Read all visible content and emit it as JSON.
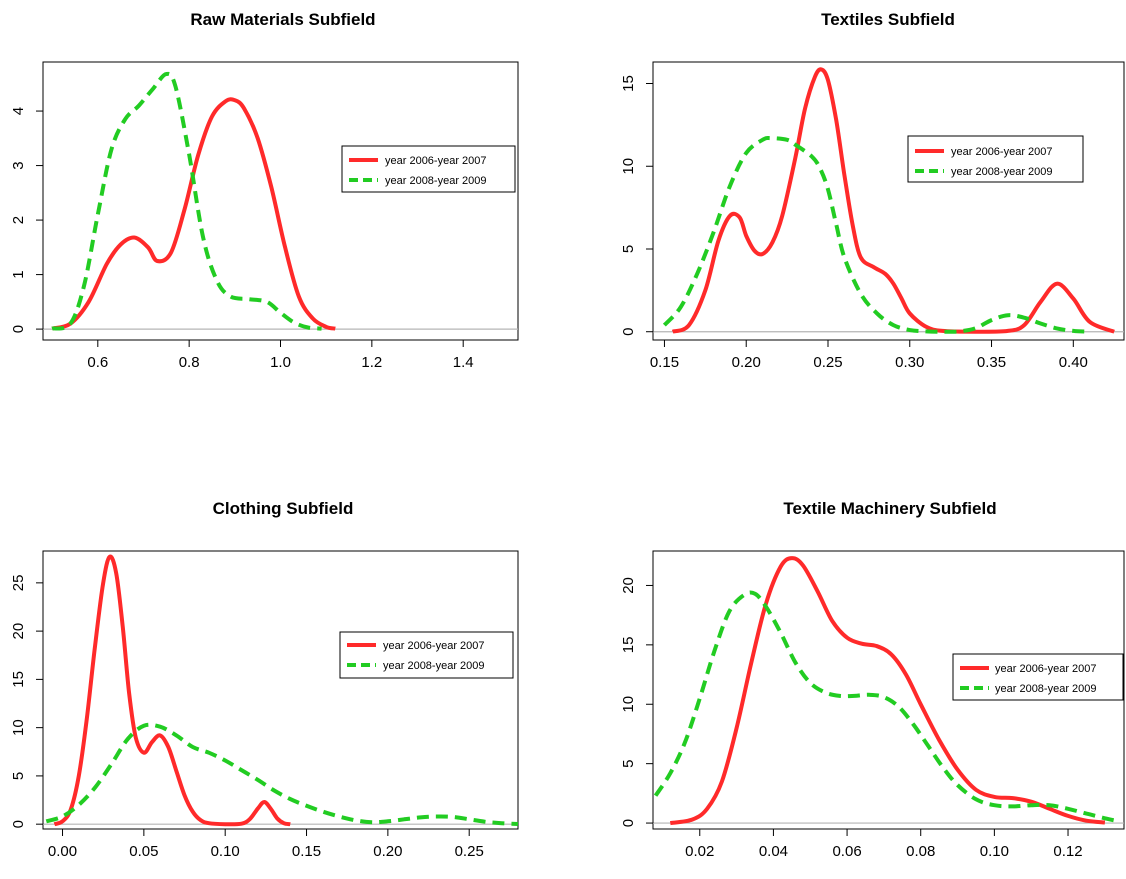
{
  "series_colors": {
    "s1": "#ff2a2a",
    "s2": "#22cc22"
  },
  "chart_data": [
    {
      "type": "line",
      "title": "Raw Materials Subfield",
      "xlabel": "",
      "ylabel": "",
      "xlim": [
        0.48,
        1.52
      ],
      "ylim": [
        -0.2,
        4.9
      ],
      "x_ticks": [
        0.6,
        0.8,
        1.0,
        1.2,
        1.4
      ],
      "x_tick_labels": [
        "0.6",
        "0.8",
        "1.0",
        "1.2",
        "1.4"
      ],
      "y_ticks": [
        0,
        1,
        2,
        3,
        4
      ],
      "y_tick_labels": [
        "0",
        "1",
        "2",
        "3",
        "4"
      ],
      "legend": {
        "position": "right",
        "entries": [
          "year 2006-year 2007",
          "year 2008-year 2009"
        ]
      },
      "series": [
        {
          "name": "year 2006-year 2007",
          "style": "solid",
          "x": [
            0.5,
            0.54,
            0.58,
            0.62,
            0.65,
            0.68,
            0.71,
            0.73,
            0.76,
            0.79,
            0.82,
            0.85,
            0.88,
            0.9,
            0.92,
            0.95,
            0.98,
            1.01,
            1.04,
            1.07,
            1.1,
            1.12
          ],
          "y": [
            0.01,
            0.1,
            0.5,
            1.2,
            1.55,
            1.68,
            1.5,
            1.25,
            1.4,
            2.2,
            3.2,
            3.9,
            4.18,
            4.2,
            4.05,
            3.5,
            2.6,
            1.5,
            0.6,
            0.2,
            0.04,
            0.01
          ]
        },
        {
          "name": "year 2008-year 2009",
          "style": "dashed",
          "x": [
            0.5,
            0.54,
            0.57,
            0.6,
            0.63,
            0.66,
            0.69,
            0.72,
            0.75,
            0.77,
            0.8,
            0.83,
            0.86,
            0.89,
            0.93,
            0.97,
            1.0,
            1.03,
            1.06,
            1.09
          ],
          "y": [
            0.01,
            0.1,
            0.8,
            2.1,
            3.3,
            3.85,
            4.1,
            4.4,
            4.68,
            4.45,
            3.2,
            1.7,
            0.9,
            0.6,
            0.55,
            0.5,
            0.3,
            0.12,
            0.03,
            0.01
          ]
        }
      ]
    },
    {
      "type": "line",
      "title": "Textiles Subfield",
      "xlabel": "",
      "ylabel": "",
      "xlim": [
        0.143,
        0.431
      ],
      "ylim": [
        -0.5,
        16.3
      ],
      "x_ticks": [
        0.15,
        0.2,
        0.25,
        0.3,
        0.35,
        0.4
      ],
      "x_tick_labels": [
        "0.15",
        "0.20",
        "0.25",
        "0.30",
        "0.35",
        "0.40"
      ],
      "y_ticks": [
        0,
        5,
        10,
        15
      ],
      "y_tick_labels": [
        "0",
        "5",
        "10",
        "15"
      ],
      "legend": {
        "position": "top-right",
        "entries": [
          "year 2006-year 2007",
          "year 2008-year 2009"
        ]
      },
      "series": [
        {
          "name": "year 2006-year 2007",
          "style": "solid",
          "x": [
            0.155,
            0.165,
            0.175,
            0.183,
            0.19,
            0.196,
            0.2,
            0.205,
            0.21,
            0.216,
            0.222,
            0.23,
            0.236,
            0.242,
            0.246,
            0.25,
            0.255,
            0.26,
            0.265,
            0.27,
            0.278,
            0.285,
            0.29,
            0.295,
            0.3,
            0.31,
            0.32,
            0.34,
            0.36,
            0.37,
            0.38,
            0.39,
            0.4,
            0.41,
            0.425
          ],
          "y": [
            0.0,
            0.4,
            2.5,
            5.5,
            7.0,
            6.9,
            5.8,
            4.9,
            4.7,
            5.4,
            7.0,
            10.5,
            13.5,
            15.4,
            15.85,
            15.2,
            12.8,
            9.5,
            6.5,
            4.5,
            3.9,
            3.5,
            2.9,
            2.0,
            1.1,
            0.3,
            0.05,
            0.0,
            0.05,
            0.4,
            1.8,
            2.9,
            2.0,
            0.6,
            0.0
          ]
        },
        {
          "name": "year 2008-year 2009",
          "style": "dashed",
          "x": [
            0.15,
            0.16,
            0.17,
            0.18,
            0.19,
            0.2,
            0.21,
            0.215,
            0.225,
            0.23,
            0.24,
            0.245,
            0.25,
            0.255,
            0.26,
            0.27,
            0.28,
            0.29,
            0.3,
            0.31,
            0.32,
            0.33,
            0.34,
            0.35,
            0.36,
            0.37,
            0.38,
            0.39,
            0.4,
            0.41
          ],
          "y": [
            0.4,
            1.5,
            3.5,
            6.0,
            8.8,
            10.8,
            11.6,
            11.7,
            11.6,
            11.3,
            10.6,
            9.9,
            8.6,
            6.5,
            4.5,
            2.3,
            1.1,
            0.4,
            0.1,
            0.02,
            0.0,
            0.02,
            0.2,
            0.7,
            1.0,
            0.85,
            0.5,
            0.2,
            0.05,
            0.0
          ]
        }
      ]
    },
    {
      "type": "line",
      "title": "Clothing Subfield",
      "xlabel": "",
      "ylabel": "",
      "xlim": [
        -0.012,
        0.28
      ],
      "ylim": [
        -0.5,
        28.3
      ],
      "x_ticks": [
        0.0,
        0.05,
        0.1,
        0.15,
        0.2,
        0.25
      ],
      "x_tick_labels": [
        "0.00",
        "0.05",
        "0.10",
        "0.15",
        "0.20",
        "0.25"
      ],
      "y_ticks": [
        0,
        5,
        10,
        15,
        20,
        25
      ],
      "y_tick_labels": [
        "0",
        "5",
        "10",
        "15",
        "20",
        "25"
      ],
      "legend": {
        "position": "right",
        "entries": [
          "year 2006-year 2007",
          "year 2008-year 2009"
        ]
      },
      "series": [
        {
          "name": "year 2006-year 2007",
          "style": "solid",
          "x": [
            -0.005,
            0.0,
            0.005,
            0.01,
            0.015,
            0.02,
            0.025,
            0.029,
            0.033,
            0.037,
            0.041,
            0.045,
            0.05,
            0.055,
            0.06,
            0.065,
            0.07,
            0.075,
            0.08,
            0.085,
            0.09,
            0.1,
            0.11,
            0.115,
            0.12,
            0.124,
            0.128,
            0.132,
            0.136,
            0.14
          ],
          "y": [
            0.0,
            0.3,
            1.5,
            5.0,
            11.0,
            18.5,
            25.0,
            27.7,
            26.0,
            20.5,
            13.5,
            9.0,
            7.4,
            8.5,
            9.2,
            8.0,
            5.5,
            3.0,
            1.3,
            0.4,
            0.1,
            0.0,
            0.05,
            0.5,
            1.6,
            2.3,
            1.6,
            0.6,
            0.1,
            0.0
          ]
        },
        {
          "name": "year 2008-year 2009",
          "style": "dashed",
          "x": [
            -0.01,
            0.0,
            0.01,
            0.02,
            0.03,
            0.04,
            0.05,
            0.06,
            0.07,
            0.08,
            0.09,
            0.1,
            0.11,
            0.12,
            0.13,
            0.14,
            0.15,
            0.16,
            0.17,
            0.18,
            0.19,
            0.2,
            0.21,
            0.22,
            0.23,
            0.24,
            0.25,
            0.26,
            0.27,
            0.28
          ],
          "y": [
            0.3,
            0.8,
            2.0,
            3.8,
            6.2,
            8.8,
            10.2,
            10.1,
            9.2,
            8.0,
            7.4,
            6.6,
            5.6,
            4.6,
            3.5,
            2.6,
            1.9,
            1.3,
            0.8,
            0.4,
            0.2,
            0.3,
            0.5,
            0.7,
            0.8,
            0.75,
            0.5,
            0.25,
            0.1,
            0.02
          ]
        }
      ]
    },
    {
      "type": "line",
      "title": "Textile Machinery Subfield",
      "xlabel": "",
      "ylabel": "",
      "xlim": [
        0.0073,
        0.1352
      ],
      "ylim": [
        -0.5,
        22.9
      ],
      "x_ticks": [
        0.02,
        0.04,
        0.06,
        0.08,
        0.1,
        0.12
      ],
      "x_tick_labels": [
        "0.02",
        "0.04",
        "0.06",
        "0.08",
        "0.10",
        "0.12"
      ],
      "y_ticks": [
        0,
        5,
        10,
        15,
        20
      ],
      "y_tick_labels": [
        "0",
        "5",
        "10",
        "15",
        "20"
      ],
      "legend": {
        "position": "right",
        "entries": [
          "year 2006-year 2007",
          "year 2008-year 2009"
        ]
      },
      "series": [
        {
          "name": "year 2006-year 2007",
          "style": "solid",
          "x": [
            0.012,
            0.018,
            0.022,
            0.026,
            0.03,
            0.034,
            0.038,
            0.042,
            0.045,
            0.048,
            0.052,
            0.056,
            0.06,
            0.064,
            0.068,
            0.072,
            0.076,
            0.08,
            0.085,
            0.09,
            0.095,
            0.1,
            0.105,
            0.11,
            0.115,
            0.12,
            0.125,
            0.13
          ],
          "y": [
            0.0,
            0.3,
            1.2,
            3.5,
            8.0,
            13.5,
            18.5,
            21.6,
            22.3,
            21.7,
            19.5,
            17.0,
            15.6,
            15.1,
            14.9,
            14.2,
            12.5,
            10.0,
            7.0,
            4.5,
            2.8,
            2.2,
            2.1,
            1.8,
            1.2,
            0.6,
            0.2,
            0.05
          ]
        },
        {
          "name": "year 2008-year 2009",
          "style": "dashed",
          "x": [
            0.008,
            0.012,
            0.016,
            0.02,
            0.024,
            0.028,
            0.032,
            0.035,
            0.038,
            0.042,
            0.046,
            0.05,
            0.054,
            0.058,
            0.062,
            0.066,
            0.07,
            0.074,
            0.078,
            0.082,
            0.086,
            0.09,
            0.095,
            0.1,
            0.105,
            0.11,
            0.115,
            0.12,
            0.125,
            0.13,
            0.133
          ],
          "y": [
            2.3,
            4.2,
            6.8,
            10.5,
            14.5,
            17.8,
            19.2,
            19.3,
            18.2,
            16.0,
            13.5,
            11.8,
            11.0,
            10.7,
            10.7,
            10.8,
            10.6,
            9.8,
            8.3,
            6.5,
            4.7,
            3.2,
            2.0,
            1.5,
            1.4,
            1.5,
            1.5,
            1.2,
            0.8,
            0.4,
            0.2
          ]
        }
      ]
    }
  ]
}
